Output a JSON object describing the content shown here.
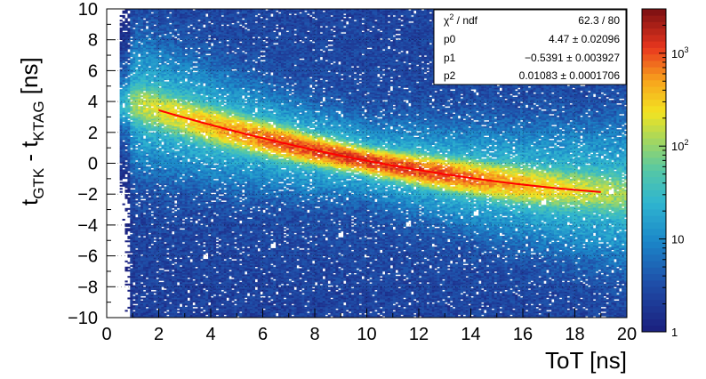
{
  "chart_data": {
    "type": "heatmap",
    "xlabel": "ToT [ns]",
    "ylabel": {
      "t": "t",
      "sub1": "GTK",
      "mid": " - t",
      "sub2": "KTAG",
      "unit": " [ns]"
    },
    "xlim": [
      0,
      20
    ],
    "ylim": [
      -10,
      10
    ],
    "x_ticks": [
      0,
      2,
      4,
      6,
      8,
      10,
      12,
      14,
      16,
      18,
      20
    ],
    "y_ticks": [
      -10,
      -8,
      -6,
      -4,
      -2,
      0,
      2,
      4,
      6,
      8,
      10
    ],
    "grid": true,
    "z_scale": "log",
    "z_range": [
      1,
      3000
    ],
    "z_ticks": [
      {
        "value": 1,
        "label": "1"
      },
      {
        "value": 10,
        "label": "10"
      },
      {
        "value": 100,
        "base": "10",
        "exp": "2"
      },
      {
        "value": 1000,
        "base": "10",
        "exp": "3"
      }
    ],
    "fit": {
      "function": "p0 + p1*x + p2*x^2",
      "p0": 4.47,
      "p1": -0.5391,
      "p2": 0.01083,
      "x_range": [
        2,
        19
      ],
      "color": "#ff0000"
    },
    "stats_box": {
      "rows": [
        {
          "label_base": "χ",
          "label_sup": "2",
          "label_rest": " / ndf",
          "value": "62.3 / 80"
        },
        {
          "label": "p0",
          "value": "4.47 ± 0.02096"
        },
        {
          "label": "p1",
          "value": "−0.5391 ± 0.003927"
        },
        {
          "label": "p2",
          "value": "0.01083 ± 0.0001706"
        }
      ]
    }
  }
}
